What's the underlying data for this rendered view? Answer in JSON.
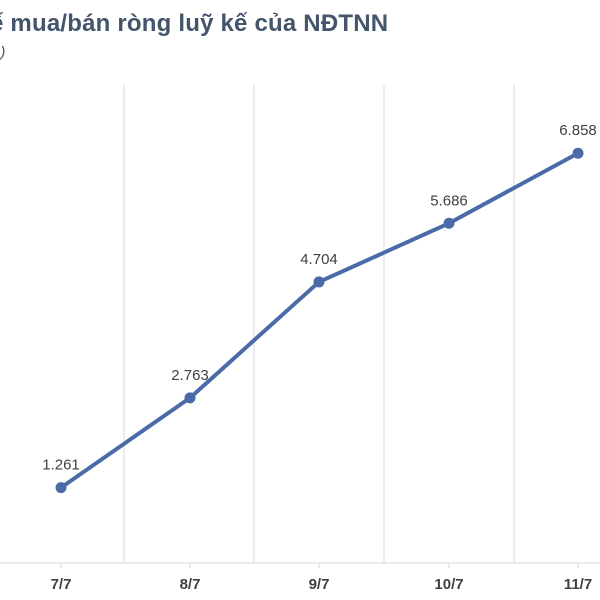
{
  "title": "ế mua/bán ròng luỹ kế của NĐTNN",
  "subtitle": "g)",
  "colors": {
    "line": "#4a6ba8",
    "grid": "#d9d9d9",
    "text": "#404040",
    "title": "#44546a"
  },
  "chart_data": {
    "type": "line",
    "title": "ế mua/bán ròng luỹ kế của NĐTNN",
    "categories": [
      "7/7",
      "8/7",
      "9/7",
      "10/7",
      "11/7"
    ],
    "values": [
      1261,
      2763,
      4704,
      5686,
      6858
    ],
    "value_labels": [
      "1.261",
      "2.763",
      "4.704",
      "5.686",
      "6.858"
    ],
    "xlabel": "",
    "ylabel": "",
    "ylim": [
      0,
      8000
    ],
    "grid": "vertical",
    "legend": "none"
  }
}
